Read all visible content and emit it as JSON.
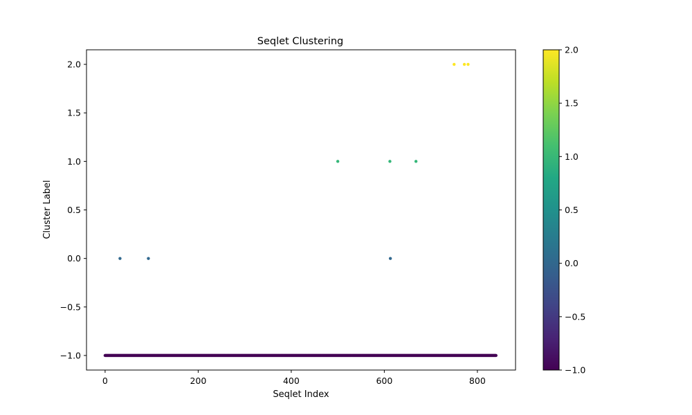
{
  "chart_data": {
    "type": "scatter",
    "title": "Seqlet Clustering",
    "xlabel": "Seqlet Index",
    "ylabel": "Cluster Label",
    "xlim": [
      -40,
      882
    ],
    "ylim": [
      -1.15,
      2.15
    ],
    "xticks": [
      0,
      200,
      400,
      600,
      800
    ],
    "xtick_labels": [
      "0",
      "200",
      "400",
      "600",
      "800"
    ],
    "yticks": [
      -1.0,
      -0.5,
      0.0,
      0.5,
      1.0,
      1.5,
      2.0
    ],
    "ytick_labels": [
      "−1.0",
      "−0.5",
      "0.0",
      "0.5",
      "1.0",
      "1.5",
      "2.0"
    ],
    "grid": false,
    "colormap": "viridis",
    "colorbar": {
      "range": [
        -1.0,
        2.0
      ],
      "ticks": [
        -1.0,
        -0.5,
        0.0,
        0.5,
        1.0,
        1.5,
        2.0
      ],
      "tick_labels": [
        "−1.0",
        "−0.5",
        "0.0",
        "0.5",
        "1.0",
        "1.5",
        "2.0"
      ]
    },
    "noise_series": {
      "y": -1,
      "x_from": 0,
      "x_to": 840,
      "step": 1
    },
    "points": [
      {
        "x": 32,
        "y": 0
      },
      {
        "x": 93,
        "y": 0
      },
      {
        "x": 613,
        "y": 0
      },
      {
        "x": 500,
        "y": 1
      },
      {
        "x": 612,
        "y": 1
      },
      {
        "x": 668,
        "y": 1
      },
      {
        "x": 750,
        "y": 2
      },
      {
        "x": 772,
        "y": 2
      },
      {
        "x": 780,
        "y": 2
      }
    ],
    "colors": {
      "-1": "#440154",
      "0": "#31688e",
      "1": "#35b779",
      "2": "#fde725"
    }
  }
}
